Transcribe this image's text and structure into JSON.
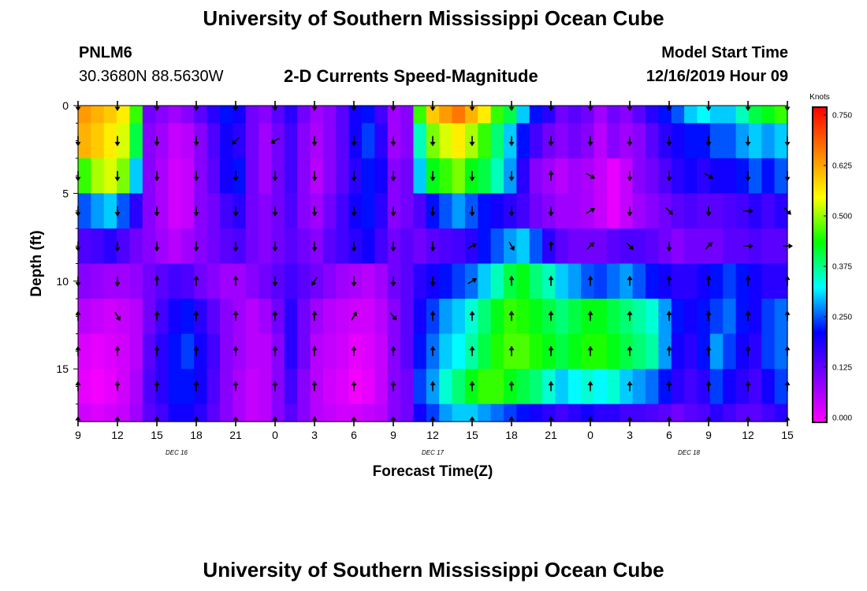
{
  "header": {
    "title": "University of Southern Mississippi Ocean Cube",
    "station_id": "PNLM6",
    "station_coords": "30.3680N 88.5630W",
    "plot_title": "2-D Currents Speed-Magnitude",
    "model_label": "Model Start Time",
    "model_time": "12/16/2019 Hour 09"
  },
  "footer": {
    "title": "University of Southern Mississippi Ocean Cube"
  },
  "chart_data": {
    "type": "heatmap",
    "title": "2-D Currents Speed-Magnitude",
    "xlabel": "Forecast Time(Z)",
    "ylabel": "Depth (ft)",
    "x_ticks": [
      "9",
      "12",
      "15",
      "18",
      "21",
      "0",
      "3",
      "6",
      "9",
      "12",
      "15",
      "18",
      "21",
      "0",
      "3",
      "6",
      "9",
      "12",
      "15"
    ],
    "x_range_hours": [
      0,
      54
    ],
    "date_labels": [
      {
        "label": "DEC 16",
        "hour": 7.5
      },
      {
        "label": "DEC 17",
        "hour": 27
      },
      {
        "label": "DEC 18",
        "hour": 46.5
      }
    ],
    "y_ticks": [
      0,
      5,
      10,
      15
    ],
    "ylim": [
      0,
      18
    ],
    "y_inverted": true,
    "colorbar": {
      "label": "Knots",
      "ticks": [
        "0.750",
        "0.625",
        "0.500",
        "0.375",
        "0.250",
        "0.125",
        "0.000"
      ],
      "range": [
        0,
        0.75
      ],
      "colors": [
        "#ff00ff",
        "#8000ff",
        "#0000ff",
        "#00ffff",
        "#00ff00",
        "#ffff00",
        "#ff8000",
        "#ff0000"
      ]
    },
    "depths_ft": [
      0,
      2,
      4,
      6,
      8,
      10,
      12,
      14,
      16,
      18
    ],
    "speed_knots": {
      "0": [
        0.62,
        0.6,
        0.58,
        0.55,
        0.45,
        0.12,
        0.1,
        0.08,
        0.1,
        0.14,
        0.18,
        0.22,
        0.2,
        0.12,
        0.1,
        0.14,
        0.18,
        0.12,
        0.08,
        0.1,
        0.14,
        0.2,
        0.22,
        0.16,
        0.08,
        0.1,
        0.45,
        0.58,
        0.62,
        0.65,
        0.6,
        0.55,
        0.45,
        0.4,
        0.3,
        0.22,
        0.18,
        0.12,
        0.14,
        0.12,
        0.08,
        0.12,
        0.1,
        0.14,
        0.18,
        0.22,
        0.25,
        0.3,
        0.32,
        0.3,
        0.3,
        0.35,
        0.4,
        0.42,
        0.45
      ],
      "2": [
        0.6,
        0.58,
        0.55,
        0.52,
        0.4,
        0.1,
        0.08,
        0.05,
        0.06,
        0.1,
        0.15,
        0.2,
        0.18,
        0.12,
        0.08,
        0.12,
        0.16,
        0.1,
        0.07,
        0.1,
        0.14,
        0.2,
        0.24,
        0.18,
        0.08,
        0.1,
        0.35,
        0.48,
        0.52,
        0.55,
        0.5,
        0.45,
        0.38,
        0.3,
        0.22,
        0.16,
        0.12,
        0.1,
        0.12,
        0.1,
        0.06,
        0.1,
        0.08,
        0.1,
        0.14,
        0.18,
        0.2,
        0.22,
        0.22,
        0.25,
        0.25,
        0.28,
        0.3,
        0.28,
        0.3
      ],
      "4": [
        0.45,
        0.5,
        0.52,
        0.48,
        0.3,
        0.1,
        0.07,
        0.04,
        0.05,
        0.1,
        0.14,
        0.2,
        0.22,
        0.12,
        0.08,
        0.12,
        0.16,
        0.1,
        0.06,
        0.1,
        0.14,
        0.18,
        0.22,
        0.2,
        0.1,
        0.12,
        0.3,
        0.42,
        0.45,
        0.48,
        0.42,
        0.4,
        0.35,
        0.28,
        0.18,
        0.1,
        0.08,
        0.06,
        0.08,
        0.07,
        0.05,
        0.02,
        0.05,
        0.1,
        0.12,
        0.15,
        0.18,
        0.2,
        0.18,
        0.2,
        0.2,
        0.22,
        0.25,
        0.22,
        0.25
      ],
      "6": [
        0.25,
        0.28,
        0.3,
        0.25,
        0.18,
        0.1,
        0.07,
        0.04,
        0.05,
        0.1,
        0.12,
        0.16,
        0.18,
        0.12,
        0.1,
        0.12,
        0.15,
        0.1,
        0.08,
        0.12,
        0.16,
        0.2,
        0.22,
        0.18,
        0.1,
        0.12,
        0.15,
        0.22,
        0.25,
        0.28,
        0.25,
        0.22,
        0.2,
        0.18,
        0.16,
        0.12,
        0.1,
        0.08,
        0.08,
        0.07,
        0.05,
        0.02,
        0.05,
        0.08,
        0.1,
        0.12,
        0.14,
        0.15,
        0.14,
        0.14,
        0.15,
        0.16,
        0.18,
        0.16,
        0.18
      ],
      "8": [
        0.15,
        0.16,
        0.18,
        0.15,
        0.12,
        0.1,
        0.08,
        0.06,
        0.08,
        0.1,
        0.12,
        0.14,
        0.15,
        0.12,
        0.1,
        0.12,
        0.14,
        0.12,
        0.1,
        0.14,
        0.16,
        0.18,
        0.2,
        0.16,
        0.12,
        0.14,
        0.12,
        0.14,
        0.15,
        0.16,
        0.18,
        0.22,
        0.25,
        0.28,
        0.3,
        0.25,
        0.18,
        0.14,
        0.12,
        0.12,
        0.12,
        0.14,
        0.15,
        0.15,
        0.14,
        0.12,
        0.1,
        0.12,
        0.12,
        0.12,
        0.14,
        0.14,
        0.15,
        0.14,
        0.14
      ],
      "10": [
        0.1,
        0.09,
        0.08,
        0.08,
        0.09,
        0.12,
        0.14,
        0.16,
        0.15,
        0.12,
        0.1,
        0.08,
        0.08,
        0.1,
        0.12,
        0.14,
        0.16,
        0.14,
        0.12,
        0.1,
        0.08,
        0.07,
        0.06,
        0.08,
        0.12,
        0.14,
        0.18,
        0.2,
        0.22,
        0.24,
        0.26,
        0.3,
        0.35,
        0.4,
        0.42,
        0.38,
        0.35,
        0.3,
        0.28,
        0.25,
        0.24,
        0.26,
        0.28,
        0.25,
        0.22,
        0.2,
        0.18,
        0.18,
        0.2,
        0.22,
        0.24,
        0.22,
        0.2,
        0.18,
        0.18
      ],
      "12": [
        0.06,
        0.05,
        0.04,
        0.05,
        0.06,
        0.12,
        0.16,
        0.2,
        0.22,
        0.18,
        0.14,
        0.1,
        0.08,
        0.06,
        0.08,
        0.12,
        0.18,
        0.12,
        0.08,
        0.06,
        0.05,
        0.04,
        0.04,
        0.06,
        0.1,
        0.14,
        0.2,
        0.24,
        0.28,
        0.3,
        0.34,
        0.38,
        0.42,
        0.45,
        0.44,
        0.42,
        0.4,
        0.38,
        0.4,
        0.42,
        0.42,
        0.4,
        0.38,
        0.36,
        0.34,
        0.28,
        0.22,
        0.2,
        0.22,
        0.24,
        0.26,
        0.22,
        0.2,
        0.24,
        0.26
      ],
      "14": [
        0.03,
        0.02,
        0.03,
        0.04,
        0.06,
        0.14,
        0.18,
        0.22,
        0.24,
        0.2,
        0.16,
        0.1,
        0.08,
        0.06,
        0.06,
        0.1,
        0.18,
        0.12,
        0.06,
        0.05,
        0.04,
        0.02,
        0.03,
        0.05,
        0.1,
        0.14,
        0.22,
        0.26,
        0.3,
        0.32,
        0.36,
        0.4,
        0.44,
        0.46,
        0.46,
        0.44,
        0.42,
        0.4,
        0.42,
        0.44,
        0.44,
        0.42,
        0.4,
        0.38,
        0.36,
        0.28,
        0.2,
        0.18,
        0.22,
        0.28,
        0.24,
        0.2,
        0.18,
        0.24,
        0.26
      ],
      "16": [
        0.02,
        0.01,
        0.02,
        0.04,
        0.07,
        0.15,
        0.18,
        0.22,
        0.22,
        0.2,
        0.15,
        0.1,
        0.07,
        0.05,
        0.06,
        0.1,
        0.16,
        0.1,
        0.06,
        0.04,
        0.03,
        0.01,
        0.02,
        0.05,
        0.1,
        0.12,
        0.24,
        0.28,
        0.34,
        0.38,
        0.42,
        0.45,
        0.45,
        0.42,
        0.4,
        0.38,
        0.34,
        0.3,
        0.32,
        0.34,
        0.32,
        0.34,
        0.3,
        0.28,
        0.26,
        0.22,
        0.18,
        0.16,
        0.18,
        0.24,
        0.2,
        0.18,
        0.16,
        0.2,
        0.24
      ],
      "18": [
        0.04,
        0.03,
        0.04,
        0.05,
        0.08,
        0.14,
        0.16,
        0.2,
        0.2,
        0.18,
        0.14,
        0.1,
        0.07,
        0.05,
        0.06,
        0.1,
        0.14,
        0.1,
        0.06,
        0.05,
        0.04,
        0.04,
        0.05,
        0.06,
        0.1,
        0.12,
        0.2,
        0.24,
        0.28,
        0.3,
        0.3,
        0.28,
        0.26,
        0.24,
        0.22,
        0.2,
        0.18,
        0.16,
        0.18,
        0.2,
        0.18,
        0.18,
        0.16,
        0.16,
        0.15,
        0.14,
        0.12,
        0.14,
        0.15,
        0.18,
        0.16,
        0.14,
        0.14,
        0.16,
        0.18
      ]
    },
    "vector_times_hours": [
      0,
      3,
      6,
      9,
      12,
      15,
      18,
      21,
      24,
      27,
      30,
      33,
      36,
      39,
      42,
      45,
      48,
      51,
      54
    ],
    "vector_direction_deg": {
      "0": [
        180,
        180,
        180,
        180,
        180,
        180,
        180,
        180,
        180,
        180,
        180,
        180,
        180,
        180,
        180,
        180,
        180,
        180,
        180
      ],
      "2": [
        180,
        180,
        180,
        180,
        225,
        240,
        180,
        180,
        180,
        180,
        180,
        180,
        180,
        180,
        180,
        180,
        180,
        180,
        180
      ],
      "4": [
        180,
        180,
        180,
        180,
        180,
        180,
        180,
        180,
        180,
        180,
        180,
        180,
        0,
        120,
        180,
        180,
        120,
        180,
        180
      ],
      "6": [
        180,
        180,
        180,
        180,
        180,
        180,
        180,
        180,
        180,
        180,
        180,
        180,
        180,
        60,
        180,
        135,
        180,
        90,
        135
      ],
      "8": [
        180,
        180,
        180,
        180,
        180,
        180,
        180,
        180,
        180,
        180,
        60,
        150,
        0,
        45,
        135,
        180,
        45,
        90,
        90
      ],
      "10": [
        180,
        180,
        0,
        0,
        0,
        180,
        210,
        180,
        180,
        180,
        60,
        0,
        0,
        0,
        0,
        0,
        0,
        0,
        0
      ],
      "12": [
        0,
        150,
        0,
        0,
        0,
        0,
        0,
        30,
        140,
        0,
        0,
        0,
        0,
        0,
        0,
        0,
        0,
        0,
        0
      ],
      "14": [
        0,
        0,
        0,
        0,
        0,
        0,
        0,
        0,
        0,
        0,
        0,
        0,
        0,
        0,
        0,
        0,
        0,
        0,
        0
      ],
      "16": [
        0,
        0,
        0,
        0,
        0,
        0,
        0,
        0,
        0,
        0,
        0,
        0,
        0,
        0,
        0,
        0,
        0,
        0,
        0
      ],
      "18": [
        0,
        0,
        0,
        0,
        0,
        0,
        0,
        0,
        0,
        0,
        0,
        0,
        0,
        0,
        0,
        0,
        0,
        0,
        0
      ]
    }
  }
}
